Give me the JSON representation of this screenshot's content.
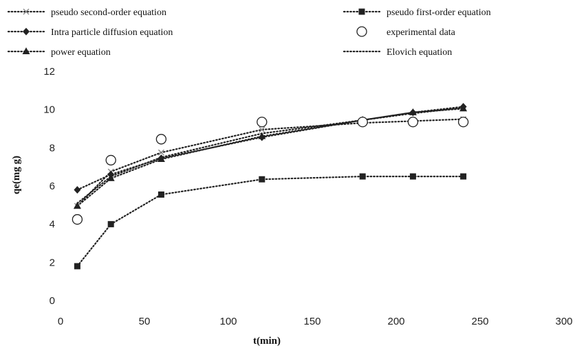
{
  "chart_data": {
    "type": "line",
    "title": "",
    "xlabel": "t(min)",
    "ylabel": "qe(mg g)",
    "xlim": [
      0,
      300
    ],
    "ylim": [
      0,
      12
    ],
    "x_ticks": [
      0,
      50,
      100,
      150,
      200,
      250,
      300
    ],
    "y_ticks": [
      0,
      2,
      4,
      6,
      8,
      10,
      12
    ],
    "grid": false,
    "legend_position": "top",
    "series": [
      {
        "name": "pseudo second-order equation",
        "marker": "x",
        "line": "dotted",
        "color": "#222222",
        "x": [
          10,
          30,
          60,
          120,
          180,
          210,
          240
        ],
        "y": [
          4.95,
          6.75,
          7.75,
          8.95,
          9.3,
          9.4,
          9.5
        ]
      },
      {
        "name": "pseudo first-order equation",
        "marker": "square",
        "line": "dotted",
        "color": "#222222",
        "x": [
          10,
          30,
          60,
          120,
          180,
          210,
          240
        ],
        "y": [
          1.8,
          4.0,
          5.55,
          6.35,
          6.5,
          6.5,
          6.5
        ]
      },
      {
        "name": "Intra particle diffusion equation",
        "marker": "diamond",
        "line": "dotted",
        "color": "#222222",
        "x": [
          10,
          30,
          60,
          120,
          180,
          210,
          240
        ],
        "y": [
          5.8,
          6.6,
          7.45,
          8.55,
          9.45,
          9.85,
          10.15
        ]
      },
      {
        "name": "experimental data",
        "marker": "circle-open",
        "line": "none",
        "color": "#222222",
        "x": [
          10,
          30,
          60,
          120,
          180,
          210,
          240
        ],
        "y": [
          4.25,
          7.35,
          8.45,
          9.35,
          9.35,
          9.35,
          9.35
        ]
      },
      {
        "name": "power equation",
        "marker": "triangle",
        "line": "dotted",
        "color": "#222222",
        "x": [
          10,
          30,
          60,
          120,
          180,
          210,
          240
        ],
        "y": [
          4.95,
          6.4,
          7.4,
          8.6,
          9.45,
          9.85,
          10.05
        ]
      },
      {
        "name": "Elovich equation",
        "marker": "none",
        "line": "dotted",
        "color": "#222222",
        "x": [
          10,
          30,
          60,
          120,
          180,
          210,
          240
        ],
        "y": [
          5.1,
          6.5,
          7.5,
          8.75,
          9.45,
          9.8,
          10.1
        ]
      }
    ]
  }
}
